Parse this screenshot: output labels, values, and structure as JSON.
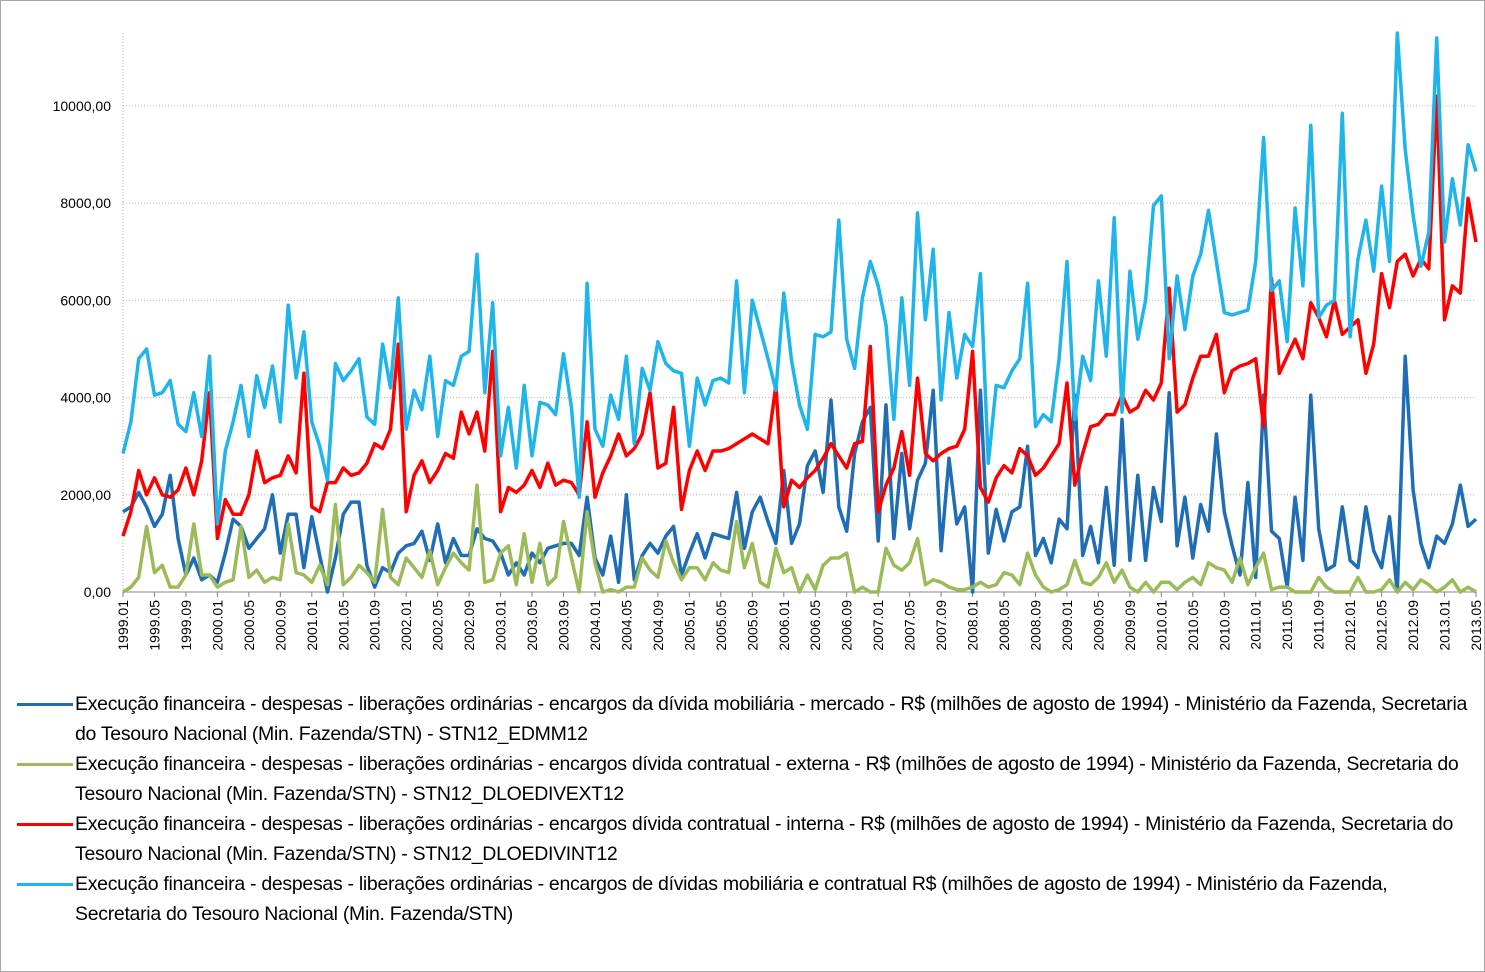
{
  "chart_data": {
    "type": "line",
    "categories": [
      "1999.01",
      null,
      null,
      null,
      "1999.05",
      null,
      null,
      null,
      "1999.09",
      null,
      null,
      null,
      "2000.01",
      null,
      null,
      null,
      "2000.05",
      null,
      null,
      null,
      "2000.09",
      null,
      null,
      null,
      "2001.01",
      null,
      null,
      null,
      "2001.05",
      null,
      null,
      null,
      "2001.09",
      null,
      null,
      null,
      "2002.01",
      null,
      null,
      null,
      "2002.05",
      null,
      null,
      null,
      "2002.09",
      null,
      null,
      null,
      "2003.01",
      null,
      null,
      null,
      "2003.05",
      null,
      null,
      null,
      "2003.09",
      null,
      null,
      null,
      "2004.01",
      null,
      null,
      null,
      "2004.05",
      null,
      null,
      null,
      "2004.09",
      null,
      null,
      null,
      "2005.01",
      null,
      null,
      null,
      "2005.05",
      null,
      null,
      null,
      "2005.09",
      null,
      null,
      null,
      "2006.01",
      null,
      null,
      null,
      "2006.05",
      null,
      null,
      null,
      "2006.09",
      null,
      null,
      null,
      "2007.01",
      null,
      null,
      null,
      "2007.05",
      null,
      null,
      null,
      "2007.09",
      null,
      null,
      null,
      "2008.01",
      null,
      null,
      null,
      "2008.05",
      null,
      null,
      null,
      "2008.09",
      null,
      null,
      null,
      "2009.01",
      null,
      null,
      null,
      "2009.05",
      null,
      null,
      null,
      "2009.09",
      null,
      null,
      null,
      "2010.01",
      null,
      null,
      null,
      "2010.05",
      null,
      null,
      null,
      "2010.09",
      null,
      null,
      null,
      "2011.01",
      null,
      null,
      null,
      "2011.05",
      null,
      null,
      null,
      "2011.09",
      null,
      null,
      null,
      "2012.01",
      null,
      null,
      null,
      "2012.05",
      null,
      null,
      null,
      "2012.09",
      null,
      null,
      null,
      "2013.01",
      null,
      null,
      null,
      "2013.05"
    ],
    "series": [
      {
        "name": "Execução financeira - despesas - liberações ordinárias - encargos da dívida mobiliária - mercado - R$ (milhões de agosto de 1994)  - Ministério da Fazenda, Secretaria do Tesouro Nacional (Min. Fazenda/STN) - STN12_EDMM12",
        "color": "#1f6db4",
        "values": [
          1650,
          1750,
          2050,
          1750,
          1350,
          1600,
          2400,
          1100,
          350,
          700,
          250,
          350,
          200,
          800,
          1500,
          1350,
          900,
          1100,
          1300,
          2000,
          800,
          1600,
          1600,
          500,
          1550,
          750,
          0,
          700,
          1600,
          1850,
          1850,
          550,
          100,
          500,
          400,
          800,
          950,
          1000,
          1250,
          650,
          1400,
          600,
          1100,
          750,
          750,
          1300,
          1100,
          1050,
          800,
          350,
          600,
          350,
          800,
          600,
          900,
          950,
          1000,
          1000,
          750,
          1950,
          700,
          350,
          1150,
          200,
          2000,
          250,
          750,
          1000,
          800,
          1150,
          1350,
          350,
          800,
          1200,
          700,
          1200,
          1150,
          1100,
          2050,
          900,
          1650,
          1950,
          1450,
          1000,
          2500,
          1000,
          1400,
          2600,
          2900,
          2050,
          3950,
          1750,
          1250,
          2850,
          3500,
          3800,
          1050,
          3850,
          1100,
          2850,
          1300,
          2300,
          2650,
          4150,
          850,
          2750,
          1400,
          1750,
          0,
          4150,
          800,
          1700,
          1050,
          1650,
          1750,
          3000,
          750,
          1100,
          600,
          1500,
          1300,
          4050,
          750,
          1350,
          600,
          2150,
          550,
          3550,
          650,
          2400,
          650,
          2150,
          1450,
          4100,
          950,
          1950,
          700,
          1800,
          1250,
          3250,
          1650,
          950,
          350,
          2250,
          300,
          4050,
          1250,
          1100,
          100,
          1950,
          650,
          4050,
          1300,
          450,
          550,
          1750,
          650,
          500,
          1750,
          850,
          500,
          1550,
          0,
          4850,
          2100,
          1000,
          500,
          1150,
          1000,
          1400,
          2200,
          1350,
          1500
        ]
      },
      {
        "name": "Execução financeira - despesas - liberações ordinárias - encargos dívida contratual - externa - R$ (milhões de agosto de 1994)  - Ministério da Fazenda, Secretaria do Tesouro Nacional (Min. Fazenda/STN) - STN12_DLOEDIVEXT12",
        "color": "#9bbb59",
        "values": [
          0,
          100,
          300,
          1350,
          400,
          550,
          100,
          100,
          350,
          1400,
          350,
          350,
          100,
          200,
          250,
          1350,
          300,
          450,
          200,
          300,
          250,
          1400,
          400,
          350,
          200,
          550,
          150,
          1800,
          150,
          300,
          550,
          400,
          200,
          1700,
          300,
          150,
          700,
          500,
          300,
          850,
          150,
          500,
          800,
          600,
          450,
          2200,
          200,
          250,
          800,
          950,
          150,
          1200,
          200,
          1000,
          150,
          300,
          1450,
          700,
          0,
          1650,
          600,
          0,
          50,
          0,
          100,
          100,
          700,
          450,
          300,
          1050,
          600,
          250,
          500,
          500,
          250,
          600,
          450,
          400,
          1450,
          500,
          1000,
          200,
          100,
          900,
          400,
          500,
          0,
          350,
          50,
          550,
          700,
          700,
          800,
          0,
          100,
          0,
          0,
          900,
          550,
          450,
          600,
          1100,
          150,
          250,
          200,
          100,
          50,
          50,
          100,
          200,
          100,
          150,
          400,
          350,
          150,
          800,
          350,
          100,
          0,
          50,
          150,
          650,
          200,
          150,
          300,
          600,
          200,
          450,
          100,
          0,
          200,
          0,
          200,
          200,
          50,
          200,
          300,
          150,
          600,
          500,
          450,
          200,
          700,
          150,
          500,
          800,
          50,
          100,
          100,
          0,
          0,
          0,
          300,
          100,
          0,
          0,
          0,
          300,
          0,
          0,
          50,
          250,
          0,
          200,
          50,
          250,
          150,
          0,
          100,
          250,
          0,
          100,
          0
        ]
      },
      {
        "name": "Execução financeira - despesas - liberações ordinárias - encargos dívida contratual - interna - R$ (milhões de agosto de 1994)  - Ministério da Fazenda, Secretaria do Tesouro Nacional (Min. Fazenda/STN) - STN12_DLOEDIVINT12",
        "color": "#ff0000",
        "values": [
          1150,
          1650,
          2500,
          2000,
          2350,
          2000,
          1950,
          2100,
          2550,
          2000,
          2700,
          4100,
          1100,
          1900,
          1600,
          1600,
          2000,
          2900,
          2250,
          2350,
          2400,
          2800,
          2450,
          4500,
          1750,
          1650,
          2250,
          2250,
          2550,
          2400,
          2450,
          2650,
          3050,
          2950,
          3350,
          5100,
          1650,
          2400,
          2700,
          2250,
          2500,
          2850,
          2750,
          3700,
          3250,
          3700,
          2900,
          4950,
          1650,
          2150,
          2050,
          2200,
          2500,
          2150,
          2650,
          2200,
          2300,
          2250,
          2000,
          3500,
          1950,
          2450,
          2800,
          3250,
          2800,
          2950,
          3250,
          4100,
          2550,
          2650,
          3800,
          1700,
          2500,
          2900,
          2500,
          2900,
          2900,
          2950,
          3050,
          3150,
          3250,
          3150,
          3050,
          4250,
          1750,
          2300,
          2150,
          2350,
          2500,
          2750,
          3050,
          2800,
          2550,
          3050,
          3100,
          5050,
          1650,
          2200,
          2550,
          3300,
          2400,
          4400,
          2850,
          2700,
          2850,
          2950,
          3000,
          3350,
          4950,
          2150,
          1850,
          2350,
          2600,
          2450,
          2950,
          2800,
          2400,
          2550,
          2800,
          3050,
          4300,
          2200,
          2850,
          3400,
          3450,
          3650,
          3650,
          4050,
          3700,
          3800,
          4150,
          3950,
          4300,
          6250,
          3700,
          3850,
          4400,
          4850,
          4850,
          5300,
          4100,
          4550,
          4650,
          4700,
          4800,
          3400,
          6450,
          4500,
          4850,
          5200,
          4800,
          5950,
          5650,
          5250,
          6000,
          5300,
          5450,
          5600,
          4500,
          5100,
          6550,
          5850,
          6800,
          6950,
          6500,
          6850,
          6650,
          10200,
          5600,
          6300,
          6150,
          8100,
          7200
        ]
      },
      {
        "name": "Execução financeira - despesas - liberações ordinárias - encargos de dívidas mobiliária e contratual R$ (milhões de agosto de 1994)  - Ministério da Fazenda, Secretaria do Tesouro Nacional (Min. Fazenda/STN)",
        "color": "#1fb4ea",
        "values": [
          2850,
          3500,
          4800,
          5000,
          4050,
          4100,
          4350,
          3450,
          3300,
          4100,
          3200,
          4850,
          1400,
          2900,
          3500,
          4250,
          3200,
          4450,
          3800,
          4650,
          3500,
          5900,
          4400,
          5350,
          3500,
          3000,
          2300,
          4700,
          4350,
          4550,
          4800,
          3600,
          3450,
          5100,
          4200,
          6050,
          3350,
          4150,
          3750,
          4850,
          3200,
          4350,
          4250,
          4850,
          4950,
          6950,
          4100,
          5950,
          2800,
          3800,
          2550,
          4250,
          2800,
          3900,
          3850,
          3650,
          4900,
          3800,
          1950,
          6350,
          3350,
          3000,
          4050,
          3550,
          4850,
          3050,
          4600,
          4150,
          5150,
          4700,
          4550,
          4500,
          3000,
          4400,
          3850,
          4350,
          4400,
          4300,
          6400,
          4100,
          6000,
          5400,
          4800,
          4150,
          6150,
          4750,
          3850,
          3350,
          5300,
          5250,
          5350,
          7650,
          5200,
          4600,
          6050,
          6800,
          6300,
          5500,
          3550,
          6050,
          4250,
          7800,
          5600,
          7050,
          3950,
          5750,
          4400,
          5300,
          5050,
          6550,
          2650,
          4250,
          4200,
          4550,
          4800,
          6350,
          3400,
          3650,
          3500,
          4800,
          6800,
          3550,
          4850,
          4350,
          6400,
          4850,
          7700,
          3700,
          6600,
          5200,
          6000,
          7950,
          8150,
          4800,
          6500,
          5400,
          6500,
          6950,
          7850,
          6800,
          5750,
          5700,
          5750,
          5800,
          6800,
          9350,
          6200,
          6400,
          5150,
          7900,
          6300,
          9600,
          5650,
          5900,
          6000,
          9850,
          5250,
          6850,
          7650,
          6600,
          8350,
          6800,
          11500,
          9100,
          7750,
          6700,
          7400,
          11400,
          7200,
          8500,
          7550,
          9200,
          8650
        ]
      }
    ],
    "ylim": [
      0,
      11500
    ],
    "yticks": [
      {
        "value": 0,
        "label": "0,00"
      },
      {
        "value": 2000,
        "label": "2000,00"
      },
      {
        "value": 4000,
        "label": "4000,00"
      },
      {
        "value": 6000,
        "label": "6000,00"
      },
      {
        "value": 8000,
        "label": "8000,00"
      },
      {
        "value": 10000,
        "label": "10000,00"
      }
    ],
    "grid": true
  }
}
